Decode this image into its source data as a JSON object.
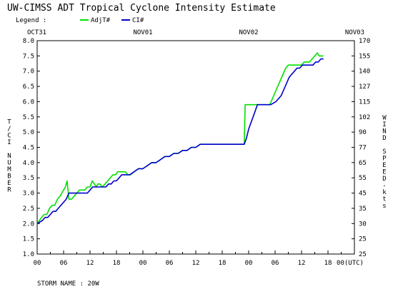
{
  "chart_data": {
    "type": "line",
    "title": "UW-CIMSS ADT Tropical Cyclone Intensity Estimate",
    "legend": {
      "label": "Legend :",
      "placement": "top-left",
      "entries": [
        {
          "name": "AdjT#",
          "color": "#00e000"
        },
        {
          "name": "CI#",
          "color": "#0000cc"
        }
      ]
    },
    "x_range_hours": [
      0,
      72
    ],
    "date_ticks": [
      {
        "label": "OCT31",
        "hour": 0
      },
      {
        "label": "NOV01",
        "hour": 24
      },
      {
        "label": "NOV02",
        "hour": 48
      },
      {
        "label": "NOV03",
        "hour": 72
      }
    ],
    "hour_ticks": [
      {
        "label": "00",
        "hour": 0
      },
      {
        "label": "06",
        "hour": 6
      },
      {
        "label": "12",
        "hour": 12
      },
      {
        "label": "18",
        "hour": 18
      },
      {
        "label": "00",
        "hour": 24
      },
      {
        "label": "06",
        "hour": 30
      },
      {
        "label": "12",
        "hour": 36
      },
      {
        "label": "18",
        "hour": 42
      },
      {
        "label": "00",
        "hour": 48
      },
      {
        "label": "06",
        "hour": 54
      },
      {
        "label": "12",
        "hour": 60
      },
      {
        "label": "18",
        "hour": 66
      },
      {
        "label": "00(UTC)",
        "hour": 72
      }
    ],
    "ylabel_left": "T/CI NUMBER",
    "ylim_left": [
      1.0,
      8.0
    ],
    "yticks_left": [
      "1.0",
      "1.5",
      "2.0",
      "2.5",
      "3.0",
      "3.5",
      "4.0",
      "4.5",
      "5.0",
      "5.5",
      "6.0",
      "6.5",
      "7.0",
      "7.5",
      "8.0"
    ],
    "ylabel_right": "WIND SPEED-kts",
    "yticks_right": [
      "25",
      "25",
      "30",
      "35",
      "45",
      "55",
      "65",
      "77",
      "90",
      "102",
      "115",
      "127",
      "140",
      "155",
      "170"
    ],
    "grid": false,
    "series": [
      {
        "name": "AdjT#",
        "color": "#00e000",
        "points": [
          [
            0.0,
            2.0
          ],
          [
            0.5,
            2.1
          ],
          [
            1.0,
            2.2
          ],
          [
            1.6,
            2.3
          ],
          [
            2.2,
            2.3
          ],
          [
            2.8,
            2.5
          ],
          [
            3.4,
            2.6
          ],
          [
            4.0,
            2.6
          ],
          [
            4.6,
            2.8
          ],
          [
            5.2,
            2.9
          ],
          [
            5.6,
            3.0
          ],
          [
            6.0,
            3.1
          ],
          [
            6.4,
            3.2
          ],
          [
            6.8,
            3.4
          ],
          [
            7.2,
            2.8
          ],
          [
            7.8,
            2.8
          ],
          [
            8.4,
            2.9
          ],
          [
            9.0,
            3.0
          ],
          [
            9.6,
            3.1
          ],
          [
            10.2,
            3.1
          ],
          [
            10.8,
            3.1
          ],
          [
            11.4,
            3.2
          ],
          [
            12.0,
            3.2
          ],
          [
            12.5,
            3.4
          ],
          [
            13.0,
            3.3
          ],
          [
            13.4,
            3.2
          ],
          [
            13.8,
            3.3
          ],
          [
            14.2,
            3.3
          ],
          [
            14.8,
            3.2
          ],
          [
            15.4,
            3.3
          ],
          [
            16.0,
            3.4
          ],
          [
            16.6,
            3.5
          ],
          [
            17.2,
            3.6
          ],
          [
            17.8,
            3.6
          ],
          [
            18.3,
            3.7
          ],
          [
            18.8,
            3.7
          ],
          [
            19.4,
            3.7
          ],
          [
            20.0,
            3.7
          ],
          [
            20.6,
            3.6
          ],
          [
            21.2,
            3.6
          ],
          [
            22.0,
            3.7
          ],
          [
            23.0,
            3.8
          ],
          [
            24.0,
            3.8
          ],
          [
            25.0,
            3.9
          ],
          [
            26.0,
            4.0
          ],
          [
            27.0,
            4.0
          ],
          [
            28.0,
            4.1
          ],
          [
            29.0,
            4.2
          ],
          [
            30.0,
            4.2
          ],
          [
            31.0,
            4.3
          ],
          [
            32.0,
            4.3
          ],
          [
            33.0,
            4.4
          ],
          [
            34.0,
            4.4
          ],
          [
            35.0,
            4.5
          ],
          [
            36.0,
            4.5
          ],
          [
            37.0,
            4.6
          ],
          [
            38.0,
            4.6
          ],
          [
            40.0,
            4.6
          ],
          [
            42.0,
            4.6
          ],
          [
            44.0,
            4.6
          ],
          [
            46.0,
            4.6
          ],
          [
            47.0,
            4.6
          ],
          [
            47.2,
            5.9
          ],
          [
            48.0,
            5.9
          ],
          [
            49.0,
            5.9
          ],
          [
            50.0,
            5.9
          ],
          [
            51.0,
            5.9
          ],
          [
            52.0,
            5.9
          ],
          [
            52.8,
            5.9
          ],
          [
            53.4,
            6.1
          ],
          [
            54.0,
            6.3
          ],
          [
            54.6,
            6.5
          ],
          [
            55.2,
            6.7
          ],
          [
            55.8,
            6.9
          ],
          [
            56.4,
            7.1
          ],
          [
            57.0,
            7.2
          ],
          [
            57.6,
            7.2
          ],
          [
            58.2,
            7.2
          ],
          [
            58.8,
            7.2
          ],
          [
            59.4,
            7.2
          ],
          [
            60.0,
            7.2
          ],
          [
            60.6,
            7.3
          ],
          [
            61.2,
            7.3
          ],
          [
            61.8,
            7.3
          ],
          [
            62.4,
            7.4
          ],
          [
            63.0,
            7.5
          ],
          [
            63.6,
            7.6
          ],
          [
            64.0,
            7.5
          ],
          [
            64.5,
            7.5
          ],
          [
            65.0,
            7.5
          ]
        ]
      },
      {
        "name": "CI#",
        "color": "#0000cc",
        "points": [
          [
            0.0,
            2.0
          ],
          [
            0.6,
            2.05
          ],
          [
            1.2,
            2.1
          ],
          [
            1.8,
            2.2
          ],
          [
            2.4,
            2.2
          ],
          [
            3.0,
            2.3
          ],
          [
            3.6,
            2.4
          ],
          [
            4.2,
            2.4
          ],
          [
            4.8,
            2.5
          ],
          [
            5.4,
            2.6
          ],
          [
            6.0,
            2.7
          ],
          [
            6.6,
            2.8
          ],
          [
            7.2,
            3.0
          ],
          [
            7.8,
            3.0
          ],
          [
            8.4,
            3.0
          ],
          [
            9.0,
            3.0
          ],
          [
            9.6,
            3.0
          ],
          [
            10.2,
            3.0
          ],
          [
            10.8,
            3.0
          ],
          [
            11.4,
            3.0
          ],
          [
            12.0,
            3.1
          ],
          [
            12.6,
            3.2
          ],
          [
            13.2,
            3.2
          ],
          [
            13.8,
            3.2
          ],
          [
            14.4,
            3.2
          ],
          [
            15.0,
            3.2
          ],
          [
            15.6,
            3.2
          ],
          [
            16.2,
            3.3
          ],
          [
            16.8,
            3.3
          ],
          [
            17.4,
            3.4
          ],
          [
            18.0,
            3.4
          ],
          [
            18.6,
            3.5
          ],
          [
            19.2,
            3.6
          ],
          [
            19.8,
            3.6
          ],
          [
            20.4,
            3.6
          ],
          [
            21.0,
            3.6
          ],
          [
            22.0,
            3.7
          ],
          [
            23.0,
            3.8
          ],
          [
            24.0,
            3.8
          ],
          [
            25.0,
            3.9
          ],
          [
            26.0,
            4.0
          ],
          [
            27.0,
            4.0
          ],
          [
            28.0,
            4.1
          ],
          [
            29.0,
            4.2
          ],
          [
            30.0,
            4.2
          ],
          [
            31.0,
            4.3
          ],
          [
            32.0,
            4.3
          ],
          [
            33.0,
            4.4
          ],
          [
            34.0,
            4.4
          ],
          [
            35.0,
            4.5
          ],
          [
            36.0,
            4.5
          ],
          [
            37.0,
            4.6
          ],
          [
            38.0,
            4.6
          ],
          [
            40.0,
            4.6
          ],
          [
            42.0,
            4.6
          ],
          [
            44.0,
            4.6
          ],
          [
            46.0,
            4.6
          ],
          [
            47.0,
            4.6
          ],
          [
            47.5,
            4.8
          ],
          [
            48.0,
            5.1
          ],
          [
            48.5,
            5.3
          ],
          [
            49.0,
            5.5
          ],
          [
            49.5,
            5.7
          ],
          [
            50.0,
            5.9
          ],
          [
            51.0,
            5.9
          ],
          [
            52.0,
            5.9
          ],
          [
            53.0,
            5.9
          ],
          [
            53.6,
            5.95
          ],
          [
            54.2,
            6.0
          ],
          [
            54.8,
            6.1
          ],
          [
            55.4,
            6.2
          ],
          [
            56.0,
            6.4
          ],
          [
            56.6,
            6.6
          ],
          [
            57.2,
            6.8
          ],
          [
            57.8,
            6.9
          ],
          [
            58.4,
            7.0
          ],
          [
            59.0,
            7.1
          ],
          [
            59.6,
            7.1
          ],
          [
            60.2,
            7.2
          ],
          [
            60.8,
            7.2
          ],
          [
            61.4,
            7.2
          ],
          [
            62.0,
            7.2
          ],
          [
            62.6,
            7.2
          ],
          [
            63.2,
            7.3
          ],
          [
            63.8,
            7.3
          ],
          [
            64.4,
            7.4
          ],
          [
            65.0,
            7.4
          ]
        ]
      }
    ],
    "footer": "STORM NAME : 20W"
  }
}
